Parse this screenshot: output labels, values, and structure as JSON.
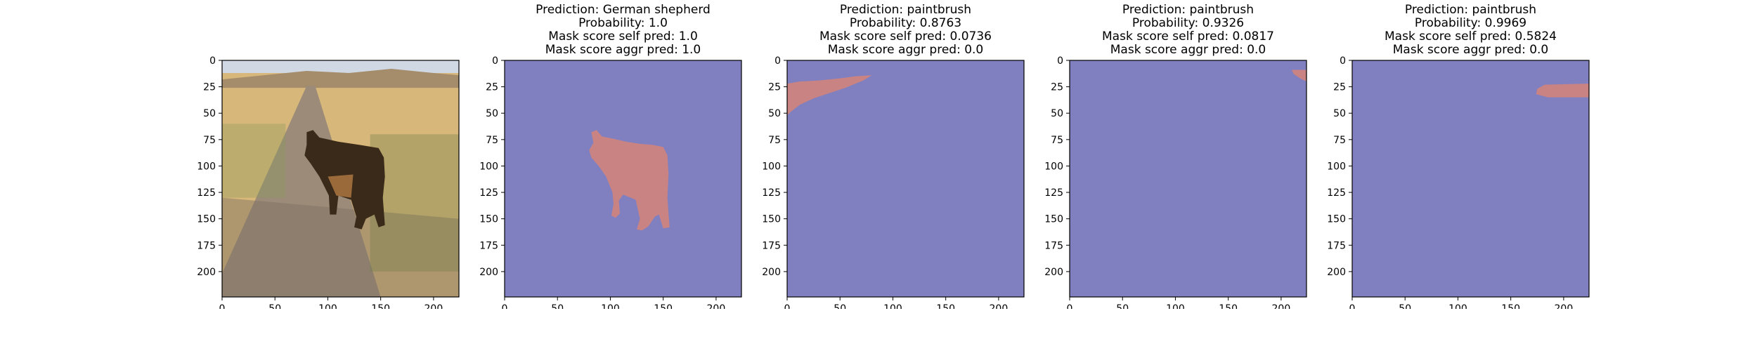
{
  "colors": {
    "mask_bg": "#8080c0",
    "mask_fg": "#c98383",
    "frame": "#000000",
    "road": "#9b8b78",
    "field": "#d8b77a",
    "sky": "#cfd8e3",
    "hills": "#a58d6c",
    "dog": "#3a2a1a"
  },
  "chart_data": [
    {
      "type": "heatmap",
      "content": "photo",
      "subject": "German shepherd dog on dirt road between wheat fields",
      "title_lines": [],
      "xlim": [
        0,
        224
      ],
      "ylim": [
        224,
        0
      ],
      "xticks": [
        "0",
        "50",
        "100",
        "150",
        "200"
      ],
      "yticks": [
        "0",
        "25",
        "50",
        "75",
        "100",
        "125",
        "150",
        "175",
        "200"
      ],
      "xtick_values": [
        0,
        50,
        100,
        150,
        200
      ],
      "ytick_values": [
        0,
        25,
        50,
        75,
        100,
        125,
        150,
        175,
        200
      ]
    },
    {
      "type": "heatmap",
      "content": "mask",
      "title_lines": [
        "Prediction: German shepherd",
        "Probability: 1.0",
        "Mask score self pred: 1.0",
        "Mask score aggr pred: 1.0"
      ],
      "xlim": [
        0,
        224
      ],
      "ylim": [
        224,
        0
      ],
      "xticks": [
        "0",
        "50",
        "100",
        "150",
        "200"
      ],
      "yticks": [
        "0",
        "25",
        "50",
        "75",
        "100",
        "125",
        "150",
        "175",
        "200"
      ],
      "xtick_values": [
        0,
        50,
        100,
        150,
        200
      ],
      "ytick_values": [
        0,
        25,
        50,
        75,
        100,
        125,
        150,
        175,
        200
      ],
      "mask_region": [
        [
          82,
          68
        ],
        [
          87,
          66
        ],
        [
          92,
          72
        ],
        [
          102,
          74
        ],
        [
          115,
          77
        ],
        [
          128,
          79
        ],
        [
          140,
          80
        ],
        [
          150,
          82
        ],
        [
          154,
          90
        ],
        [
          155,
          108
        ],
        [
          154,
          130
        ],
        [
          155,
          145
        ],
        [
          156,
          158
        ],
        [
          150,
          159
        ],
        [
          146,
          146
        ],
        [
          142,
          148
        ],
        [
          136,
          157
        ],
        [
          130,
          161
        ],
        [
          125,
          160
        ],
        [
          128,
          150
        ],
        [
          124,
          132
        ],
        [
          112,
          127
        ],
        [
          108,
          133
        ],
        [
          109,
          145
        ],
        [
          105,
          149
        ],
        [
          101,
          147
        ],
        [
          103,
          136
        ],
        [
          102,
          125
        ],
        [
          96,
          110
        ],
        [
          89,
          100
        ],
        [
          82,
          92
        ],
        [
          80,
          85
        ],
        [
          84,
          78
        ]
      ]
    },
    {
      "type": "heatmap",
      "content": "mask",
      "title_lines": [
        "Prediction: paintbrush",
        "Probability: 0.8763",
        "Mask score self pred: 0.0736",
        "Mask score aggr pred: 0.0"
      ],
      "xlim": [
        0,
        224
      ],
      "ylim": [
        224,
        0
      ],
      "xticks": [
        "0",
        "50",
        "100",
        "150",
        "200"
      ],
      "yticks": [
        "0",
        "25",
        "50",
        "75",
        "100",
        "125",
        "150",
        "175",
        "200"
      ],
      "xtick_values": [
        0,
        50,
        100,
        150,
        200
      ],
      "ytick_values": [
        0,
        25,
        50,
        75,
        100,
        125,
        150,
        175,
        200
      ],
      "mask_region": [
        [
          0,
          22
        ],
        [
          12,
          20
        ],
        [
          30,
          19
        ],
        [
          50,
          17
        ],
        [
          65,
          15
        ],
        [
          80,
          14
        ],
        [
          72,
          19
        ],
        [
          55,
          26
        ],
        [
          40,
          31
        ],
        [
          25,
          36
        ],
        [
          12,
          42
        ],
        [
          3,
          49
        ],
        [
          0,
          52
        ]
      ]
    },
    {
      "type": "heatmap",
      "content": "mask",
      "title_lines": [
        "Prediction: paintbrush",
        "Probability: 0.9326",
        "Mask score self pred: 0.0817",
        "Mask score aggr pred: 0.0"
      ],
      "xlim": [
        0,
        224
      ],
      "ylim": [
        224,
        0
      ],
      "xticks": [
        "0",
        "50",
        "100",
        "150",
        "200"
      ],
      "yticks": [
        "0",
        "25",
        "50",
        "75",
        "100",
        "125",
        "150",
        "175",
        "200"
      ],
      "xtick_values": [
        0,
        50,
        100,
        150,
        200
      ],
      "ytick_values": [
        0,
        25,
        50,
        75,
        100,
        125,
        150,
        175,
        200
      ],
      "mask_region": [
        [
          210,
          9
        ],
        [
          224,
          9
        ],
        [
          224,
          20
        ],
        [
          218,
          17
        ],
        [
          212,
          13
        ]
      ]
    },
    {
      "type": "heatmap",
      "content": "mask",
      "title_lines": [
        "Prediction: paintbrush",
        "Probability: 0.9969",
        "Mask score self pred: 0.5824",
        "Mask score aggr pred: 0.0"
      ],
      "xlim": [
        0,
        224
      ],
      "ylim": [
        224,
        0
      ],
      "xticks": [
        "0",
        "50",
        "100",
        "150",
        "200"
      ],
      "yticks": [
        "0",
        "25",
        "50",
        "75",
        "100",
        "125",
        "150",
        "175",
        "200"
      ],
      "xtick_values": [
        0,
        50,
        100,
        150,
        200
      ],
      "ytick_values": [
        0,
        25,
        50,
        75,
        100,
        125,
        150,
        175,
        200
      ],
      "mask_region": [
        [
          175,
          27
        ],
        [
          182,
          23
        ],
        [
          224,
          22
        ],
        [
          224,
          35
        ],
        [
          185,
          35
        ],
        [
          174,
          32
        ]
      ]
    }
  ]
}
